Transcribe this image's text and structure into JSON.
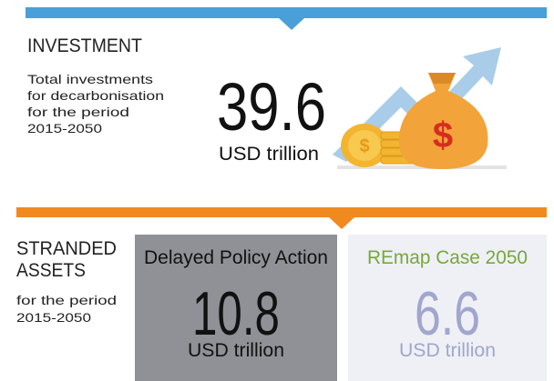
{
  "investment": {
    "title": "INVESTMENT",
    "description": [
      "Total investments",
      "for decarbonisation",
      "for the period",
      "2015-2050"
    ],
    "value": 39.6,
    "unit": "USD trillion"
  },
  "stranded_assets": {
    "title": [
      "STRANDED",
      "ASSETS"
    ],
    "description": [
      "for the period",
      "2015-2050"
    ],
    "panels": [
      {
        "label": "Delayed Policy Action",
        "value": 10.8,
        "unit": "USD trillion"
      },
      {
        "label": "REmap Case 2050",
        "value": 6.6,
        "unit": "USD trillion"
      }
    ]
  }
}
